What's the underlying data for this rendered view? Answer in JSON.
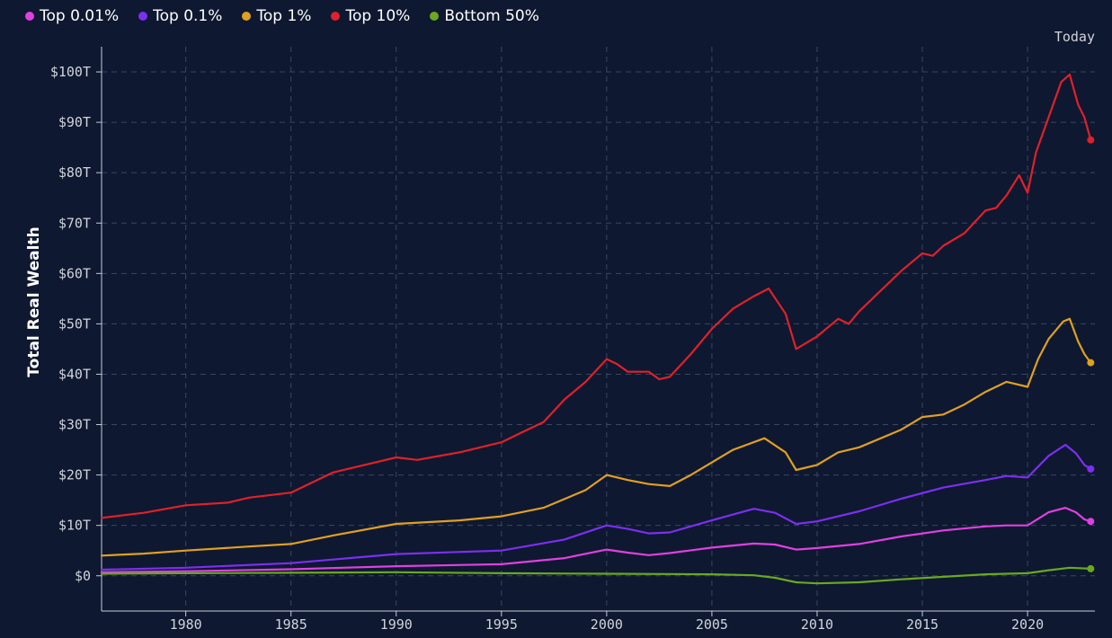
{
  "chart_data": {
    "type": "line",
    "title": "",
    "xlabel": "",
    "ylabel": "Total Real Wealth",
    "xlim": [
      1976,
      2023.2
    ],
    "ylim": [
      -7,
      105
    ],
    "x_ticks": [
      1980,
      1985,
      1990,
      1995,
      2000,
      2005,
      2010,
      2015,
      2020
    ],
    "y_ticks": [
      0,
      10,
      20,
      30,
      40,
      50,
      60,
      70,
      80,
      90,
      100
    ],
    "y_tick_labels": [
      "$0",
      "$10T",
      "$20T",
      "$30T",
      "$40T",
      "$50T",
      "$60T",
      "$70T",
      "$80T",
      "$90T",
      "$100T"
    ],
    "today_label": "Today",
    "today_x": 2023,
    "grid": true,
    "legend_position": "top-left",
    "series": [
      {
        "name": "Top 0.01%",
        "color": "#e040e0",
        "points": [
          [
            1976,
            0.7
          ],
          [
            1980,
            0.9
          ],
          [
            1985,
            1.3
          ],
          [
            1990,
            1.9
          ],
          [
            1995,
            2.3
          ],
          [
            1998,
            3.5
          ],
          [
            2000,
            5.2
          ],
          [
            2001,
            4.6
          ],
          [
            2002,
            4.1
          ],
          [
            2003,
            4.5
          ],
          [
            2005,
            5.6
          ],
          [
            2007,
            6.4
          ],
          [
            2008,
            6.2
          ],
          [
            2009,
            5.2
          ],
          [
            2010,
            5.5
          ],
          [
            2012,
            6.3
          ],
          [
            2014,
            7.8
          ],
          [
            2016,
            9.0
          ],
          [
            2018,
            9.8
          ],
          [
            2019,
            10.0
          ],
          [
            2020,
            10.0
          ],
          [
            2021,
            12.6
          ],
          [
            2021.8,
            13.5
          ],
          [
            2022.3,
            12.6
          ],
          [
            2022.7,
            11.2
          ],
          [
            2023,
            10.8
          ]
        ]
      },
      {
        "name": "Top 0.1%",
        "color": "#7b2ff0",
        "points": [
          [
            1976,
            1.2
          ],
          [
            1980,
            1.6
          ],
          [
            1985,
            2.5
          ],
          [
            1990,
            4.3
          ],
          [
            1995,
            5.0
          ],
          [
            1998,
            7.2
          ],
          [
            2000,
            10.0
          ],
          [
            2001,
            9.3
          ],
          [
            2002,
            8.4
          ],
          [
            2003,
            8.6
          ],
          [
            2005,
            11.0
          ],
          [
            2007,
            13.3
          ],
          [
            2008,
            12.5
          ],
          [
            2009,
            10.3
          ],
          [
            2010,
            10.8
          ],
          [
            2012,
            12.8
          ],
          [
            2014,
            15.3
          ],
          [
            2016,
            17.5
          ],
          [
            2018,
            19.0
          ],
          [
            2019,
            19.8
          ],
          [
            2020,
            19.5
          ],
          [
            2021,
            23.8
          ],
          [
            2021.8,
            26.0
          ],
          [
            2022.3,
            24.3
          ],
          [
            2022.7,
            22.0
          ],
          [
            2023,
            21.2
          ]
        ]
      },
      {
        "name": "Top 1%",
        "color": "#e0a020",
        "points": [
          [
            1976,
            4.0
          ],
          [
            1978,
            4.4
          ],
          [
            1980,
            5.0
          ],
          [
            1983,
            5.8
          ],
          [
            1985,
            6.3
          ],
          [
            1987,
            8.0
          ],
          [
            1990,
            10.3
          ],
          [
            1993,
            11.0
          ],
          [
            1995,
            11.8
          ],
          [
            1997,
            13.5
          ],
          [
            1999,
            17.0
          ],
          [
            2000,
            20.0
          ],
          [
            2001,
            19.0
          ],
          [
            2002,
            18.2
          ],
          [
            2003,
            17.8
          ],
          [
            2004,
            20.0
          ],
          [
            2005,
            22.5
          ],
          [
            2006,
            25.0
          ],
          [
            2007.5,
            27.3
          ],
          [
            2008.5,
            24.5
          ],
          [
            2009,
            21.0
          ],
          [
            2010,
            22.0
          ],
          [
            2011,
            24.5
          ],
          [
            2012,
            25.5
          ],
          [
            2014,
            29.0
          ],
          [
            2015,
            31.5
          ],
          [
            2016,
            32.0
          ],
          [
            2017,
            34.0
          ],
          [
            2018,
            36.5
          ],
          [
            2019,
            38.5
          ],
          [
            2020,
            37.5
          ],
          [
            2020.5,
            43.0
          ],
          [
            2021,
            47.0
          ],
          [
            2021.7,
            50.5
          ],
          [
            2022,
            51.0
          ],
          [
            2022.4,
            46.5
          ],
          [
            2022.7,
            44.0
          ],
          [
            2023,
            42.3
          ]
        ]
      },
      {
        "name": "Top 10%",
        "color": "#e0202a",
        "points": [
          [
            1976,
            11.5
          ],
          [
            1978,
            12.5
          ],
          [
            1980,
            14.0
          ],
          [
            1982,
            14.5
          ],
          [
            1983,
            15.5
          ],
          [
            1985,
            16.5
          ],
          [
            1986,
            18.5
          ],
          [
            1987,
            20.5
          ],
          [
            1988,
            21.5
          ],
          [
            1990,
            23.5
          ],
          [
            1991,
            23.0
          ],
          [
            1993,
            24.5
          ],
          [
            1995,
            26.5
          ],
          [
            1996,
            28.5
          ],
          [
            1997,
            30.5
          ],
          [
            1998,
            35.0
          ],
          [
            1999,
            38.5
          ],
          [
            2000,
            43.0
          ],
          [
            2000.5,
            42.0
          ],
          [
            2001,
            40.5
          ],
          [
            2002,
            40.5
          ],
          [
            2002.5,
            39.0
          ],
          [
            2003,
            39.5
          ],
          [
            2004,
            44.0
          ],
          [
            2005,
            49.0
          ],
          [
            2006,
            53.0
          ],
          [
            2007,
            55.5
          ],
          [
            2007.7,
            57.0
          ],
          [
            2008.5,
            52.0
          ],
          [
            2009,
            45.0
          ],
          [
            2010,
            47.5
          ],
          [
            2011,
            51.0
          ],
          [
            2011.5,
            50.0
          ],
          [
            2012,
            52.5
          ],
          [
            2013,
            56.5
          ],
          [
            2014,
            60.5
          ],
          [
            2015,
            64.0
          ],
          [
            2015.5,
            63.5
          ],
          [
            2016,
            65.5
          ],
          [
            2017,
            68.0
          ],
          [
            2018,
            72.5
          ],
          [
            2018.5,
            73.0
          ],
          [
            2019,
            75.5
          ],
          [
            2019.6,
            79.5
          ],
          [
            2020,
            76.0
          ],
          [
            2020.4,
            84.0
          ],
          [
            2021,
            91.0
          ],
          [
            2021.6,
            98.0
          ],
          [
            2022,
            99.5
          ],
          [
            2022.4,
            93.5
          ],
          [
            2022.7,
            91.0
          ],
          [
            2023,
            86.5
          ]
        ]
      },
      {
        "name": "Bottom 50%",
        "color": "#6aa820",
        "points": [
          [
            1976,
            0.4
          ],
          [
            1980,
            0.5
          ],
          [
            1985,
            0.6
          ],
          [
            1990,
            0.7
          ],
          [
            1995,
            0.5
          ],
          [
            2000,
            0.4
          ],
          [
            2005,
            0.3
          ],
          [
            2007,
            0.1
          ],
          [
            2008,
            -0.4
          ],
          [
            2009,
            -1.3
          ],
          [
            2010,
            -1.5
          ],
          [
            2012,
            -1.3
          ],
          [
            2014,
            -0.7
          ],
          [
            2016,
            -0.2
          ],
          [
            2018,
            0.3
          ],
          [
            2020,
            0.5
          ],
          [
            2021,
            1.1
          ],
          [
            2022,
            1.6
          ],
          [
            2023,
            1.4
          ]
        ]
      }
    ]
  }
}
